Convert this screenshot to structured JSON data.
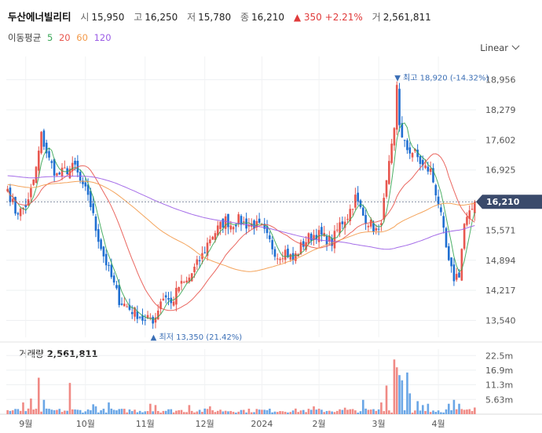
{
  "header": {
    "name": "두산에너빌리티",
    "open_label": "시",
    "open": "15,950",
    "high_label": "고",
    "high": "16,250",
    "low_label": "저",
    "low": "15,780",
    "close_label": "종",
    "close": "16,210",
    "change_arrow": "▲",
    "change": "350",
    "change_pct": "+2.21%",
    "volume_label": "거",
    "volume": "2,561,811"
  },
  "ma_legend": {
    "label": "이동평균",
    "items": [
      {
        "period": "5",
        "color": "#3aa757"
      },
      {
        "period": "20",
        "color": "#e8574f"
      },
      {
        "period": "60",
        "color": "#f39a4a"
      },
      {
        "period": "120",
        "color": "#9b5de5"
      }
    ]
  },
  "scale_button": "Linear",
  "volume_panel": {
    "label": "거래량",
    "value": "2,561,811"
  },
  "colors": {
    "up": "#e8574f",
    "down": "#1f6fd1",
    "current_tag": "#3a4a6b",
    "annotation": "#3b6fb6"
  },
  "chart_data": [
    {
      "type": "candlestick",
      "title": "두산에너빌리티",
      "y_ticks": [
        "18,956",
        "18,279",
        "17,602",
        "16,925",
        "16,248",
        "15,571",
        "14,894",
        "14,217",
        "13,540"
      ],
      "y_tick_values": [
        18956,
        18279,
        17602,
        16925,
        16248,
        15571,
        14894,
        14217,
        13540
      ],
      "ylim": [
        13160,
        19480
      ],
      "x_ticks": [
        "9월",
        "10월",
        "11월",
        "12월",
        "2024",
        "2월",
        "3월",
        "4월"
      ],
      "x_tick_indices": [
        7,
        30,
        53,
        76,
        98,
        120,
        143,
        166
      ],
      "current_price": {
        "label": "16,210",
        "value": 16210
      },
      "max_annotation": {
        "text": "▼ 최고 18,920 (-14.32%)",
        "value": 18920,
        "index": 150
      },
      "min_annotation": {
        "text": "▲ 최저 13,350 (21.42%)",
        "value": 13350,
        "index": 56
      },
      "close_anchors": [
        [
          0,
          16500
        ],
        [
          3,
          16000
        ],
        [
          5,
          16000
        ],
        [
          8,
          16200
        ],
        [
          11,
          16950
        ],
        [
          13,
          17700
        ],
        [
          16,
          17150
        ],
        [
          19,
          16800
        ],
        [
          22,
          16900
        ],
        [
          26,
          17000
        ],
        [
          29,
          16500
        ],
        [
          31,
          16400
        ],
        [
          34,
          15600
        ],
        [
          37,
          15000
        ],
        [
          40,
          14500
        ],
        [
          43,
          14000
        ],
        [
          47,
          13800
        ],
        [
          51,
          13650
        ],
        [
          53,
          13500
        ],
        [
          55,
          13600
        ],
        [
          56,
          13450
        ],
        [
          59,
          14000
        ],
        [
          61,
          14100
        ],
        [
          63,
          13900
        ],
        [
          66,
          14300
        ],
        [
          69,
          14400
        ],
        [
          72,
          14700
        ],
        [
          75,
          15000
        ],
        [
          78,
          15400
        ],
        [
          81,
          15600
        ],
        [
          84,
          15800
        ],
        [
          86,
          15700
        ],
        [
          89,
          15800
        ],
        [
          92,
          15700
        ],
        [
          95,
          15700
        ],
        [
          98,
          15600
        ],
        [
          101,
          15300
        ],
        [
          104,
          15000
        ],
        [
          107,
          15100
        ],
        [
          110,
          14900
        ],
        [
          113,
          15200
        ],
        [
          116,
          15400
        ],
        [
          119,
          15500
        ],
        [
          122,
          15400
        ],
        [
          125,
          15300
        ],
        [
          128,
          15700
        ],
        [
          131,
          15900
        ],
        [
          134,
          16300
        ],
        [
          137,
          15900
        ],
        [
          140,
          15700
        ],
        [
          143,
          15500
        ],
        [
          145,
          16200
        ],
        [
          147,
          17000
        ],
        [
          149,
          17800
        ],
        [
          150,
          18400
        ],
        [
          152,
          17600
        ],
        [
          154,
          17400
        ],
        [
          157,
          17300
        ],
        [
          160,
          17000
        ],
        [
          163,
          16900
        ],
        [
          166,
          16200
        ],
        [
          168,
          15500
        ],
        [
          170,
          14800
        ],
        [
          172,
          14500
        ],
        [
          174,
          14600
        ],
        [
          176,
          15700
        ],
        [
          178,
          15900
        ],
        [
          180,
          16210
        ]
      ],
      "ma_periods": [
        5,
        20,
        60,
        120
      ],
      "volume": {
        "y_ticks": [
          "22.5m",
          "16.9m",
          "11.3m",
          "5.63m"
        ],
        "y_tick_values": [
          22.5,
          16.9,
          11.3,
          5.63
        ],
        "ylim": [
          0,
          25.0
        ],
        "last_value_m": 2.56,
        "spikes": [
          [
            6,
            4.5
          ],
          [
            9,
            6.0
          ],
          [
            12,
            14.0
          ],
          [
            14,
            5.5
          ],
          [
            24,
            12.0
          ],
          [
            33,
            3.8
          ],
          [
            34,
            3.0
          ],
          [
            39,
            4.5
          ],
          [
            55,
            4.0
          ],
          [
            57,
            3.5
          ],
          [
            70,
            3.5
          ],
          [
            78,
            3.0
          ],
          [
            96,
            2.0
          ],
          [
            118,
            3.0
          ],
          [
            130,
            2.5
          ],
          [
            137,
            5.5
          ],
          [
            144,
            4.5
          ],
          [
            146,
            11.0
          ],
          [
            149,
            21.0
          ],
          [
            150,
            18.0
          ],
          [
            151,
            15.0
          ],
          [
            152,
            13.0
          ],
          [
            154,
            16.0
          ],
          [
            155,
            8.0
          ],
          [
            158,
            5.0
          ],
          [
            160,
            3.5
          ],
          [
            162,
            4.0
          ],
          [
            170,
            4.0
          ],
          [
            172,
            5.5
          ],
          [
            174,
            4.0
          ]
        ]
      }
    }
  ]
}
